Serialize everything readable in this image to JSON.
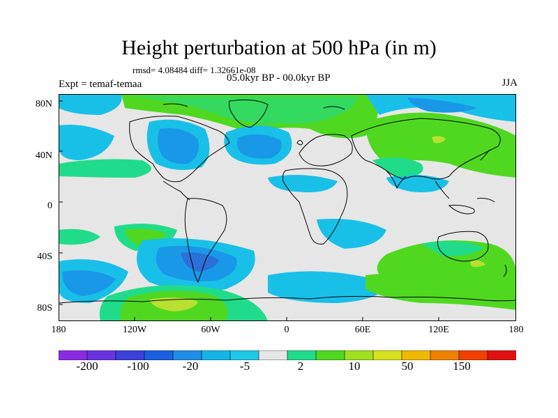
{
  "header": {
    "title": "Height perturbation at 500 hPa (in m)",
    "stats": "rmsd= 4.08484 diff= 1.32661e-08",
    "period": "05.0kyr BP - 00.0kyr BP",
    "experiment": "Expt = temaf-temaa",
    "season": "JJA"
  },
  "axes": {
    "lat_ticks": [
      "80N",
      "40N",
      "0",
      "40S",
      "80S"
    ],
    "lon_ticks": [
      "180",
      "120W",
      "60W",
      "0",
      "60E",
      "120E",
      "180"
    ]
  },
  "colorbar": {
    "labels": [
      "-200",
      "-100",
      "-20",
      "-5",
      "2",
      "10",
      "50",
      "150"
    ],
    "colors": [
      "#8a2be2",
      "#6a33e0",
      "#3a40d8",
      "#1a60e0",
      "#1e8ee8",
      "#14b4e6",
      "#20c8e8",
      "#e6e6e6",
      "#20dc8a",
      "#50d820",
      "#a0e020",
      "#d8e020",
      "#f0b800",
      "#f08000",
      "#f04000",
      "#e01010"
    ]
  },
  "colors": {
    "background": "#e6e6e6",
    "light_blue": "#18c0e8",
    "mid_blue": "#1a98e8",
    "dark_blue": "#2a70d8",
    "cyan_green": "#20dc8a",
    "green": "#50d820",
    "yellow_green": "#b8e030",
    "coast": "#000000"
  }
}
